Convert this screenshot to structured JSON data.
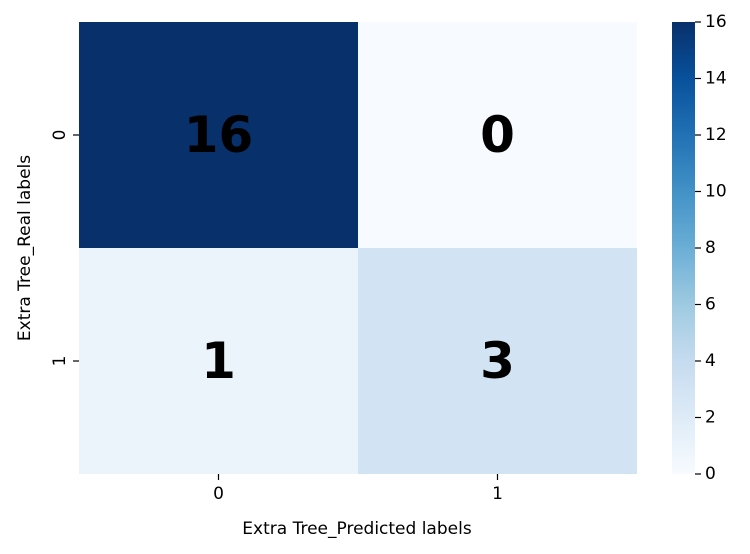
{
  "chart_data": {
    "type": "heatmap",
    "title": "",
    "xlabel": "Extra Tree_Predicted labels",
    "ylabel": "Extra Tree_Real labels",
    "x_categories": [
      "0",
      "1"
    ],
    "y_categories": [
      "0",
      "1"
    ],
    "values": [
      [
        16,
        0
      ],
      [
        1,
        3
      ]
    ],
    "colormap": "Blues",
    "color_range": [
      0,
      16
    ],
    "colorbar_ticks": [
      0,
      2,
      4,
      6,
      8,
      10,
      12,
      14,
      16
    ],
    "annotations": "bold, black",
    "grid": false
  }
}
